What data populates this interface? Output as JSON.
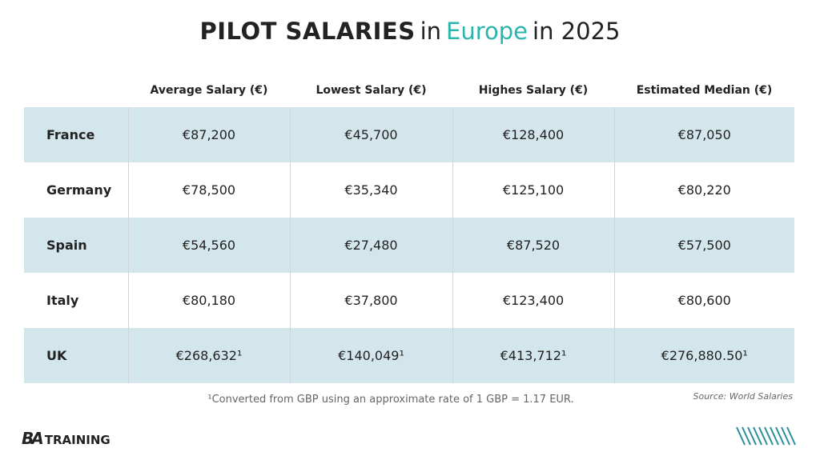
{
  "header": {
    "title": [
      "PILOT SALARIES",
      "in",
      "Europe",
      "in 2025"
    ]
  },
  "table": {
    "columns": [
      "Average Salary (€)",
      "Lowest Salary (€)",
      "Highes Salary (€)",
      "Estimated Median (€)"
    ],
    "rows": [
      {
        "country": "France",
        "cells": [
          "€87,200",
          "€45,700",
          "€128,400",
          "€87,050"
        ]
      },
      {
        "country": "Germany",
        "cells": [
          "€78,500",
          "€35,340",
          "€125,100",
          "€80,220"
        ]
      },
      {
        "country": "Spain",
        "cells": [
          "€54,560",
          "€27,480",
          "€87,520",
          "€57,500"
        ]
      },
      {
        "country": "Italy",
        "cells": [
          "€80,180",
          "€37,800",
          "€123,400",
          "€80,600"
        ]
      },
      {
        "country": "UK",
        "cells": [
          "€268,632¹",
          "€140,049¹",
          "€413,712¹",
          "€276,880.50¹"
        ]
      }
    ]
  },
  "footnote": "¹Converted from GBP using an approximate rate of 1 GBP = 1.17 EUR.",
  "source": "Source: World Salaries",
  "logo": {
    "mark": "BA",
    "text": "TRAINING"
  }
}
